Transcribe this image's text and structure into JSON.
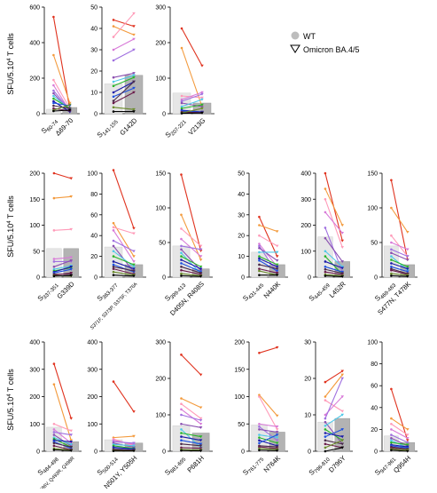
{
  "legend": {
    "wt_label": "WT",
    "omicron_label": "Omicron BA.4/5",
    "wt_fill": "#e6e6e6",
    "omicron_fill": "#b3b3b3"
  },
  "ylabel_parts": {
    "main": "SFU/5.10",
    "sup": "4",
    "rest": " T cells"
  },
  "donor_colors": [
    "#e0321e",
    "#f39a3c",
    "#ff9ab8",
    "#d87ad8",
    "#a070e0",
    "#8a4fb0",
    "#50c8e8",
    "#28b428",
    "#1a1aa8",
    "#1e50e0",
    "#4a2a4a",
    "#6a1a4a",
    "#6a8a2a",
    "#000000"
  ],
  "chart_data": [
    {
      "type": "bar",
      "wt_label": "S",
      "wt_sub": "60-74",
      "mut_label": "Δ69-70",
      "ylim": [
        0,
        600
      ],
      "yticks": [
        0,
        200,
        400,
        600
      ],
      "bars": [
        25,
        35
      ],
      "series": [
        [
          545,
          25
        ],
        [
          330,
          60
        ],
        [
          190,
          30
        ],
        [
          160,
          15
        ],
        [
          130,
          20
        ],
        [
          115,
          15
        ],
        [
          100,
          25
        ],
        [
          85,
          30
        ],
        [
          70,
          10
        ],
        [
          60,
          45
        ],
        [
          45,
          30
        ],
        [
          30,
          15
        ],
        [
          20,
          50
        ],
        [
          15,
          20
        ]
      ]
    },
    {
      "type": "bar",
      "wt_label": "S",
      "wt_sub": "141-155",
      "mut_label": "G142D",
      "ylim": [
        0,
        50
      ],
      "yticks": [
        0,
        10,
        20,
        30,
        40,
        50
      ],
      "bars": [
        14,
        18
      ],
      "series": [
        [
          44,
          41
        ],
        [
          41,
          37
        ],
        [
          36,
          47
        ],
        [
          30,
          35
        ],
        [
          25,
          30
        ],
        [
          17,
          19
        ],
        [
          15,
          18
        ],
        [
          13,
          17
        ],
        [
          10,
          15
        ],
        [
          8,
          12
        ],
        [
          6,
          15
        ],
        [
          5,
          10
        ],
        [
          3,
          2
        ],
        [
          1,
          1
        ]
      ]
    },
    {
      "type": "bar",
      "wt_label": "S",
      "wt_sub": "207-221",
      "mut_label": "V213G",
      "ylim": [
        0,
        300
      ],
      "yticks": [
        0,
        100,
        200,
        300
      ],
      "bars": [
        58,
        30
      ],
      "series": [
        [
          240,
          135
        ],
        [
          185,
          20
        ],
        [
          50,
          45
        ],
        [
          40,
          60
        ],
        [
          35,
          55
        ],
        [
          30,
          20
        ],
        [
          20,
          40
        ],
        [
          15,
          25
        ],
        [
          10,
          5
        ],
        [
          8,
          4
        ],
        [
          5,
          2
        ],
        [
          4,
          3
        ],
        [
          2,
          15
        ],
        [
          1,
          2
        ]
      ]
    },
    {
      "type": "bar",
      "wt_label": "S",
      "wt_sub": "337-351",
      "mut_label": "G339D",
      "ylim": [
        0,
        200
      ],
      "yticks": [
        0,
        50,
        100,
        150,
        200
      ],
      "bars": [
        55,
        55
      ],
      "series": [
        [
          200,
          190
        ],
        [
          152,
          155
        ],
        [
          90,
          92
        ],
        [
          35,
          38
        ],
        [
          30,
          30
        ],
        [
          20,
          32
        ],
        [
          15,
          22
        ],
        [
          12,
          18
        ],
        [
          10,
          20
        ],
        [
          8,
          15
        ],
        [
          6,
          5
        ],
        [
          4,
          8
        ],
        [
          3,
          2
        ],
        [
          2,
          3
        ]
      ]
    },
    {
      "type": "bar",
      "wt_label": "S",
      "wt_sub": "363-377",
      "mut_label": "S371F, S373P, S375F, T376A",
      "ylim": [
        0,
        100
      ],
      "yticks": [
        0,
        20,
        40,
        60,
        80,
        100
      ],
      "bars": [
        29,
        12
      ],
      "series": [
        [
          103,
          47
        ],
        [
          52,
          20
        ],
        [
          48,
          42
        ],
        [
          45,
          15
        ],
        [
          35,
          25
        ],
        [
          30,
          5
        ],
        [
          25,
          10
        ],
        [
          20,
          12
        ],
        [
          15,
          8
        ],
        [
          12,
          5
        ],
        [
          10,
          6
        ],
        [
          8,
          3
        ],
        [
          5,
          2
        ],
        [
          2,
          1
        ]
      ]
    },
    {
      "type": "bar",
      "wt_label": "S",
      "wt_sub": "399-413",
      "mut_label": "D405N, R408S",
      "ylim": [
        0,
        150
      ],
      "yticks": [
        0,
        50,
        100,
        150
      ],
      "bars": [
        45,
        12
      ],
      "series": [
        [
          148,
          38
        ],
        [
          90,
          25
        ],
        [
          70,
          45
        ],
        [
          55,
          30
        ],
        [
          45,
          40
        ],
        [
          40,
          10
        ],
        [
          35,
          5
        ],
        [
          30,
          15
        ],
        [
          25,
          12
        ],
        [
          20,
          8
        ],
        [
          15,
          6
        ],
        [
          10,
          4
        ],
        [
          5,
          2
        ],
        [
          2,
          1
        ]
      ]
    },
    {
      "type": "bar",
      "wt_label": "S",
      "wt_sub": "431-445",
      "mut_label": "N440K",
      "ylim": [
        0,
        50
      ],
      "yticks": [
        0,
        10,
        20,
        30,
        40,
        50
      ],
      "bars": [
        12,
        6
      ],
      "series": [
        [
          29,
          10
        ],
        [
          25,
          22
        ],
        [
          20,
          15
        ],
        [
          16,
          5
        ],
        [
          15,
          2
        ],
        [
          14,
          8
        ],
        [
          12,
          12
        ],
        [
          10,
          6
        ],
        [
          9,
          5
        ],
        [
          8,
          3
        ],
        [
          6,
          4
        ],
        [
          4,
          2
        ],
        [
          3,
          1
        ],
        [
          1,
          1
        ]
      ]
    },
    {
      "type": "bar",
      "wt_label": "S",
      "wt_sub": "445-459",
      "mut_label": "L452R",
      "ylim": [
        0,
        400
      ],
      "yticks": [
        0,
        100,
        200,
        300,
        400
      ],
      "bars": [
        155,
        60
      ],
      "series": [
        [
          400,
          140
        ],
        [
          340,
          200
        ],
        [
          300,
          115
        ],
        [
          250,
          170
        ],
        [
          190,
          20
        ],
        [
          150,
          60
        ],
        [
          100,
          40
        ],
        [
          80,
          10
        ],
        [
          60,
          35
        ],
        [
          40,
          20
        ],
        [
          30,
          15
        ],
        [
          20,
          10
        ],
        [
          10,
          5
        ],
        [
          5,
          2
        ]
      ]
    },
    {
      "type": "bar",
      "wt_label": "S",
      "wt_sub": "469-483",
      "mut_label": "S477N, T478K",
      "ylim": [
        0,
        150
      ],
      "yticks": [
        0,
        50,
        100,
        150
      ],
      "bars": [
        45,
        18
      ],
      "series": [
        [
          140,
          25
        ],
        [
          100,
          65
        ],
        [
          60,
          30
        ],
        [
          50,
          40
        ],
        [
          40,
          30
        ],
        [
          35,
          25
        ],
        [
          30,
          10
        ],
        [
          25,
          15
        ],
        [
          20,
          12
        ],
        [
          15,
          8
        ],
        [
          12,
          5
        ],
        [
          10,
          4
        ],
        [
          5,
          3
        ],
        [
          2,
          1
        ]
      ]
    },
    {
      "type": "bar",
      "wt_label": "S",
      "wt_sub": "484-498",
      "mut_label": "E484A, F486V, Q493R, Q498R",
      "ylim": [
        0,
        400
      ],
      "yticks": [
        0,
        100,
        200,
        300,
        400
      ],
      "bars": [
        88,
        35
      ],
      "series": [
        [
          320,
          120
        ],
        [
          245,
          40
        ],
        [
          100,
          75
        ],
        [
          80,
          30
        ],
        [
          70,
          60
        ],
        [
          60,
          20
        ],
        [
          50,
          25
        ],
        [
          45,
          15
        ],
        [
          40,
          35
        ],
        [
          35,
          10
        ],
        [
          30,
          15
        ],
        [
          20,
          5
        ],
        [
          10,
          3
        ],
        [
          5,
          2
        ]
      ]
    },
    {
      "type": "bar",
      "wt_label": "S",
      "wt_sub": "500-514",
      "mut_label": "N501Y, Y505H",
      "ylim": [
        0,
        400
      ],
      "yticks": [
        0,
        100,
        200,
        300,
        400
      ],
      "bars": [
        42,
        30
      ],
      "series": [
        [
          255,
          145
        ],
        [
          50,
          55
        ],
        [
          45,
          20
        ],
        [
          40,
          25
        ],
        [
          35,
          30
        ],
        [
          30,
          15
        ],
        [
          25,
          20
        ],
        [
          20,
          10
        ],
        [
          15,
          8
        ],
        [
          10,
          5
        ],
        [
          8,
          4
        ],
        [
          5,
          3
        ],
        [
          3,
          2
        ],
        [
          1,
          1
        ]
      ]
    },
    {
      "type": "bar",
      "wt_label": "S",
      "wt_sub": "681-695",
      "mut_label": "P681H",
      "ylim": [
        0,
        300
      ],
      "yticks": [
        0,
        100,
        200,
        300
      ],
      "bars": [
        70,
        50
      ],
      "series": [
        [
          265,
          210
        ],
        [
          145,
          120
        ],
        [
          130,
          90
        ],
        [
          115,
          75
        ],
        [
          100,
          85
        ],
        [
          75,
          65
        ],
        [
          60,
          10
        ],
        [
          50,
          40
        ],
        [
          40,
          30
        ],
        [
          30,
          20
        ],
        [
          20,
          15
        ],
        [
          10,
          8
        ],
        [
          5,
          3
        ],
        [
          2,
          1
        ]
      ]
    },
    {
      "type": "bar",
      "wt_label": "S",
      "wt_sub": "761-775",
      "mut_label": "N764K",
      "ylim": [
        0,
        200
      ],
      "yticks": [
        0,
        50,
        100,
        150,
        200
      ],
      "bars": [
        48,
        35
      ],
      "series": [
        [
          180,
          190
        ],
        [
          103,
          65
        ],
        [
          100,
          40
        ],
        [
          50,
          45
        ],
        [
          45,
          20
        ],
        [
          40,
          35
        ],
        [
          30,
          25
        ],
        [
          25,
          15
        ],
        [
          20,
          10
        ],
        [
          15,
          30
        ],
        [
          10,
          8
        ],
        [
          8,
          5
        ],
        [
          5,
          3
        ],
        [
          2,
          1
        ]
      ]
    },
    {
      "type": "bar",
      "wt_label": "S",
      "wt_sub": "796-810",
      "mut_label": "D796Y",
      "ylim": [
        0,
        30
      ],
      "yticks": [
        0,
        10,
        20,
        30
      ],
      "bars": [
        8,
        9
      ],
      "series": [
        [
          19,
          22
        ],
        [
          15,
          21
        ],
        [
          14,
          11
        ],
        [
          10,
          15
        ],
        [
          9,
          20
        ],
        [
          8,
          2
        ],
        [
          7,
          10
        ],
        [
          6,
          3
        ],
        [
          5,
          4
        ],
        [
          4,
          6
        ],
        [
          3,
          2
        ],
        [
          2,
          1
        ],
        [
          1,
          3
        ],
        [
          0,
          1
        ]
      ]
    },
    {
      "type": "bar",
      "wt_label": "S",
      "wt_sub": "947-961",
      "mut_label": "Q954H",
      "ylim": [
        0,
        100
      ],
      "yticks": [
        0,
        20,
        40,
        60,
        80,
        100
      ],
      "bars": [
        14,
        8
      ],
      "series": [
        [
          57,
          10
        ],
        [
          30,
          20
        ],
        [
          25,
          15
        ],
        [
          20,
          12
        ],
        [
          15,
          8
        ],
        [
          12,
          5
        ],
        [
          10,
          3
        ],
        [
          8,
          6
        ],
        [
          6,
          4
        ],
        [
          5,
          3
        ],
        [
          4,
          2
        ],
        [
          3,
          1
        ],
        [
          2,
          1
        ],
        [
          1,
          0
        ]
      ]
    }
  ]
}
